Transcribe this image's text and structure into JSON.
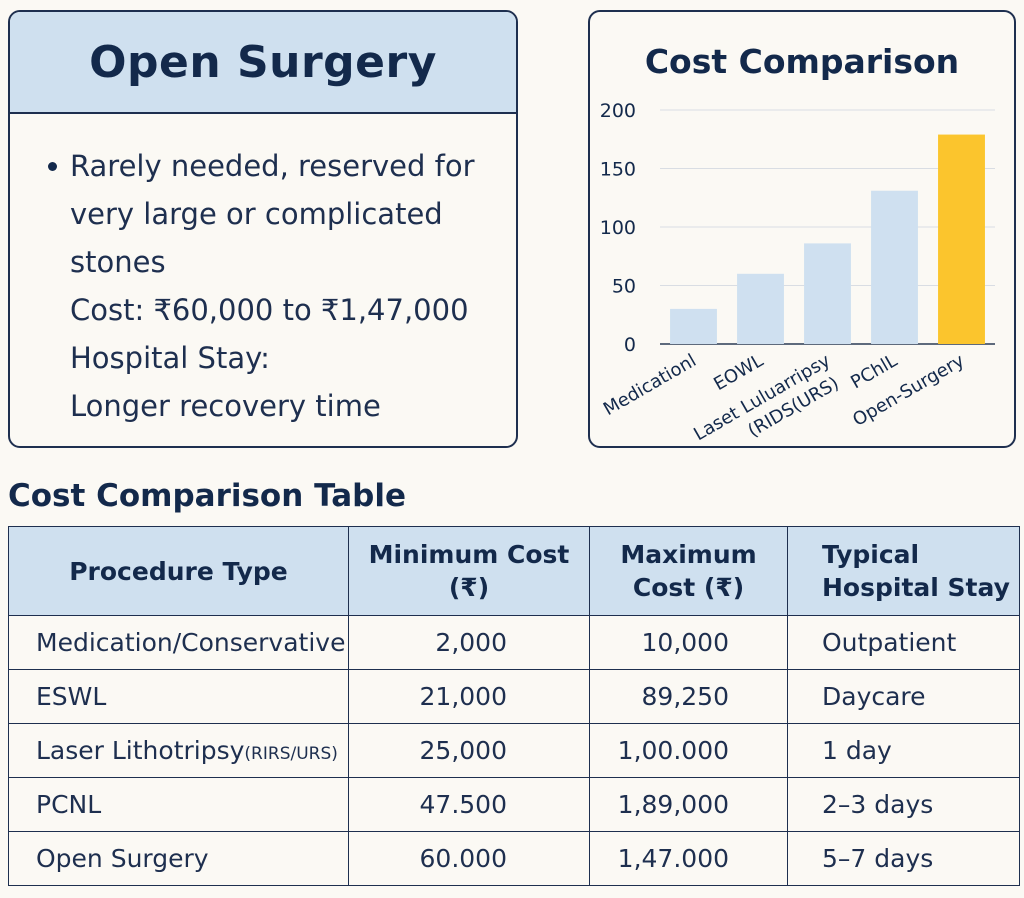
{
  "info_card": {
    "title": "Open Surgery",
    "lines": [
      "Rarely needed, reserved for",
      "very large or complicated",
      "stones",
      "Cost: ₹60,000 to ₹1,47,000",
      "Hospital Stay:",
      "Longer recovery time"
    ]
  },
  "chart_data": {
    "type": "bar",
    "title": "Cost Comparison",
    "categories": [
      "Medicationl",
      "EOWL",
      "Laset Luluarripsy (RIDS(URS)",
      "PChlL",
      "Open-Surgery"
    ],
    "values": [
      30,
      60,
      86,
      131,
      179
    ],
    "highlight_index": 4,
    "ylim": [
      0,
      200
    ],
    "yticks": [
      0,
      50,
      100,
      150,
      200
    ],
    "grid": true,
    "colors": {
      "bar": "#cfe0f0",
      "highlight": "#fbc52d",
      "grid": "#d9dde3"
    }
  },
  "table": {
    "title": "Cost Comparison Table",
    "headers": {
      "procedure": "Procedure Type",
      "min_1": "Minimum Cost",
      "min_2": "(₹)",
      "max_1": "Maximum",
      "max_2": "Cost (₹)",
      "stay_1": "Typical",
      "stay_2": "Hospital Stay"
    },
    "rows": [
      {
        "procedure": "Medication/Conservative",
        "note": "",
        "min": "2,000",
        "max": "10,000",
        "stay": "Outpatient"
      },
      {
        "procedure": "ESWL",
        "note": "",
        "min": "21,000",
        "max": "89,250",
        "stay": "Daycare"
      },
      {
        "procedure": "Laser Lithotripsy",
        "note": "(RIRS/URS)",
        "min": "25,000",
        "max": "1,00.000",
        "stay": "1 day"
      },
      {
        "procedure": "PCNL",
        "note": "",
        "min": "47.500",
        "max": "1,89,000",
        "stay": "2–3 days"
      },
      {
        "procedure": "Open Surgery",
        "note": "",
        "min": "60.000",
        "max": "1,47.000",
        "stay": "5–7 days"
      }
    ]
  }
}
